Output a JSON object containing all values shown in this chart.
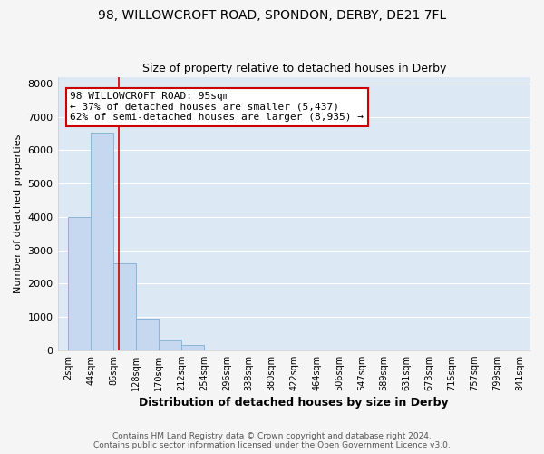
{
  "title1": "98, WILLOWCROFT ROAD, SPONDON, DERBY, DE21 7FL",
  "title2": "Size of property relative to detached houses in Derby",
  "xlabel": "Distribution of detached houses by size in Derby",
  "ylabel": "Number of detached properties",
  "footer1": "Contains HM Land Registry data © Crown copyright and database right 2024.",
  "footer2": "Contains public sector information licensed under the Open Government Licence v3.0.",
  "annotation_line1": "98 WILLOWCROFT ROAD: 95sqm",
  "annotation_line2": "← 37% of detached houses are smaller (5,437)",
  "annotation_line3": "62% of semi-detached houses are larger (8,935) →",
  "property_size": 95,
  "bin_edges": [
    2,
    44,
    86,
    128,
    170,
    212,
    254,
    296,
    338,
    380,
    422,
    464,
    506,
    547,
    589,
    631,
    673,
    715,
    757,
    799,
    841
  ],
  "bar_heights": [
    4000,
    6500,
    2600,
    950,
    330,
    150,
    0,
    0,
    0,
    0,
    0,
    0,
    0,
    0,
    0,
    0,
    0,
    0,
    0,
    0
  ],
  "bar_color": "#c5d8f0",
  "bar_edgecolor": "#8ab4d8",
  "vline_color": "#cc0000",
  "annotation_box_edgecolor": "#cc0000",
  "plot_background_color": "#dde8f5",
  "figure_background_color": "#f5f5f5",
  "grid_color": "#ffffff",
  "ylim": [
    0,
    8200
  ],
  "xlim_left": 2,
  "xlim_right": 841,
  "xtick_positions": [
    2,
    44,
    86,
    128,
    170,
    212,
    254,
    296,
    338,
    380,
    422,
    464,
    506,
    547,
    589,
    631,
    673,
    715,
    757,
    799,
    841
  ],
  "xtick_labels": [
    "2sqm",
    "44sqm",
    "86sqm",
    "128sqm",
    "170sqm",
    "212sqm",
    "254sqm",
    "296sqm",
    "338sqm",
    "380sqm",
    "422sqm",
    "464sqm",
    "506sqm",
    "547sqm",
    "589sqm",
    "631sqm",
    "673sqm",
    "715sqm",
    "757sqm",
    "799sqm",
    "841sqm"
  ],
  "title1_fontsize": 10,
  "title2_fontsize": 9,
  "xlabel_fontsize": 9,
  "ylabel_fontsize": 8,
  "tick_fontsize": 7,
  "annotation_fontsize": 8,
  "footer_fontsize": 6.5
}
